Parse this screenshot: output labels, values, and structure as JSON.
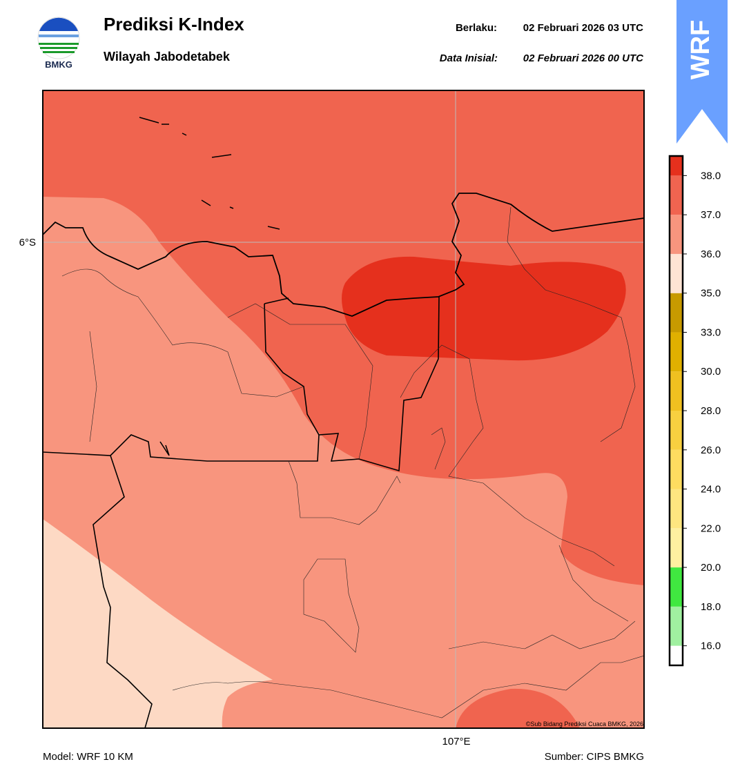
{
  "header": {
    "title": "Prediksi K-Index",
    "subtitle": "Wilayah Jabodetabek",
    "valid_label": "Berlaku:",
    "valid_time": "02 Februari 2026 03 UTC",
    "init_label": "Data Inisial:",
    "init_time": "02 Februari 2026 00 UTC"
  },
  "logo_text": "BMKG",
  "badge": "WRF",
  "map": {
    "lat_label": "6°S",
    "lon_label": "107°E",
    "credit": "©Sub Bidang Prediksi Cuaca BMKG, 2026"
  },
  "colorbar": {
    "ticks": [
      {
        "value": 16,
        "label": "16.0"
      },
      {
        "value": 18,
        "label": "18.0"
      },
      {
        "value": 20,
        "label": "20.0"
      },
      {
        "value": 22,
        "label": "22.0"
      },
      {
        "value": 24,
        "label": "24.0"
      },
      {
        "value": 26,
        "label": "26.0"
      },
      {
        "value": 28,
        "label": "28.0"
      },
      {
        "value": 30,
        "label": "30.0"
      },
      {
        "value": 33,
        "label": "33.0"
      },
      {
        "value": 35,
        "label": "35.0"
      },
      {
        "value": 36,
        "label": "36.0"
      },
      {
        "value": 37,
        "label": "37.0"
      },
      {
        "value": 38,
        "label": "38.0"
      }
    ],
    "colors": [
      "#ffffff",
      "#a0f0a0",
      "#40e840",
      "#fff0a0",
      "#ffe680",
      "#ffdc60",
      "#f8d040",
      "#f0c020",
      "#e0b000",
      "#c89a00",
      "#ffe4d4",
      "#f8957e",
      "#f06450",
      "#e5301d"
    ]
  },
  "footer": {
    "model": "Model: WRF 10 KM",
    "source": "Sumber: CIPS BMKG"
  }
}
